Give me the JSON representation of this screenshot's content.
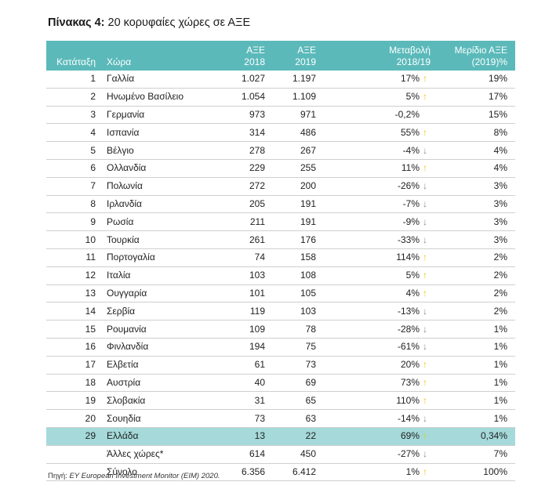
{
  "title": {
    "prefix": "Πίνακας 4:",
    "text": "20 κορυφαίες χώρες σε ΑΞΕ"
  },
  "colors": {
    "header_bg": "#5bb9ba",
    "highlight_bg": "#a5d9da",
    "arrow_up": "#f2c800",
    "arrow_down": "#8a8a8a"
  },
  "headers": {
    "rank": "Κατάταξη",
    "country": "Χώρα",
    "fdi2018_l1": "ΑΞΕ",
    "fdi2018_l2": "2018",
    "fdi2019_l1": "ΑΞΕ",
    "fdi2019_l2": "2019",
    "change_l1": "Μεταβολή",
    "change_l2": "2018/19",
    "share_l1": "Μερίδιο ΑΞΕ",
    "share_l2": "(2019)%"
  },
  "rows": [
    {
      "rank": "1",
      "country": "Γαλλία",
      "fdi2018": "1.027",
      "fdi2019": "1.197",
      "change": "17%",
      "dir": "up",
      "share": "19%"
    },
    {
      "rank": "2",
      "country": "Ηνωμένο Βασίλειο",
      "fdi2018": "1.054",
      "fdi2019": "1.109",
      "change": "5%",
      "dir": "up",
      "share": "17%"
    },
    {
      "rank": "3",
      "country": "Γερμανία",
      "fdi2018": "973",
      "fdi2019": "971",
      "change": "-0,2%",
      "dir": "none",
      "share": "15%"
    },
    {
      "rank": "4",
      "country": "Ισπανία",
      "fdi2018": "314",
      "fdi2019": "486",
      "change": "55%",
      "dir": "up",
      "share": "8%"
    },
    {
      "rank": "5",
      "country": "Βέλγιο",
      "fdi2018": "278",
      "fdi2019": "267",
      "change": "-4%",
      "dir": "down",
      "share": "4%"
    },
    {
      "rank": "6",
      "country": "Ολλανδία",
      "fdi2018": "229",
      "fdi2019": "255",
      "change": "11%",
      "dir": "up",
      "share": "4%"
    },
    {
      "rank": "7",
      "country": "Πολωνία",
      "fdi2018": "272",
      "fdi2019": "200",
      "change": "-26%",
      "dir": "down",
      "share": "3%"
    },
    {
      "rank": "8",
      "country": "Ιρλανδία",
      "fdi2018": "205",
      "fdi2019": "191",
      "change": "-7%",
      "dir": "down",
      "share": "3%"
    },
    {
      "rank": "9",
      "country": "Ρωσία",
      "fdi2018": "211",
      "fdi2019": "191",
      "change": "-9%",
      "dir": "down",
      "share": "3%"
    },
    {
      "rank": "10",
      "country": "Τουρκία",
      "fdi2018": "261",
      "fdi2019": "176",
      "change": "-33%",
      "dir": "down",
      "share": "3%"
    },
    {
      "rank": "11",
      "country": "Πορτογαλία",
      "fdi2018": "74",
      "fdi2019": "158",
      "change": "114%",
      "dir": "up",
      "share": "2%"
    },
    {
      "rank": "12",
      "country": "Ιταλία",
      "fdi2018": "103",
      "fdi2019": "108",
      "change": "5%",
      "dir": "up",
      "share": "2%"
    },
    {
      "rank": "13",
      "country": "Ουγγαρία",
      "fdi2018": "101",
      "fdi2019": "105",
      "change": "4%",
      "dir": "up",
      "share": "2%"
    },
    {
      "rank": "14",
      "country": "Σερβία",
      "fdi2018": "119",
      "fdi2019": "103",
      "change": "-13%",
      "dir": "down",
      "share": "2%"
    },
    {
      "rank": "15",
      "country": "Ρουμανία",
      "fdi2018": "109",
      "fdi2019": "78",
      "change": "-28%",
      "dir": "down",
      "share": "1%"
    },
    {
      "rank": "16",
      "country": "Φινλανδία",
      "fdi2018": "194",
      "fdi2019": "75",
      "change": "-61%",
      "dir": "down",
      "share": "1%"
    },
    {
      "rank": "17",
      "country": "Ελβετία",
      "fdi2018": "61",
      "fdi2019": "73",
      "change": "20%",
      "dir": "up",
      "share": "1%"
    },
    {
      "rank": "18",
      "country": "Αυστρία",
      "fdi2018": "40",
      "fdi2019": "69",
      "change": "73%",
      "dir": "up",
      "share": "1%"
    },
    {
      "rank": "19",
      "country": "Σλοβακία",
      "fdi2018": "31",
      "fdi2019": "65",
      "change": "110%",
      "dir": "up",
      "share": "1%"
    },
    {
      "rank": "20",
      "country": "Σουηδία",
      "fdi2018": "73",
      "fdi2019": "63",
      "change": "-14%",
      "dir": "down",
      "share": "1%"
    },
    {
      "rank": "29",
      "country": "Ελλάδα",
      "fdi2018": "13",
      "fdi2019": "22",
      "change": "69%",
      "dir": "up",
      "share": "0,34%",
      "highlight": true
    },
    {
      "rank": "",
      "country": "Άλλες χώρες*",
      "fdi2018": "614",
      "fdi2019": "450",
      "change": "-27%",
      "dir": "down",
      "share": "7%"
    },
    {
      "rank": "",
      "country": "Σύνολο",
      "fdi2018": "6.356",
      "fdi2019": "6.412",
      "change": "1%",
      "dir": "up",
      "share": "100%"
    }
  ],
  "arrows": {
    "up": "↑",
    "down": "↓",
    "none": ""
  },
  "source": {
    "label": "Πηγή:",
    "text": "EY European Investment Monitor (EIM) 2020."
  }
}
